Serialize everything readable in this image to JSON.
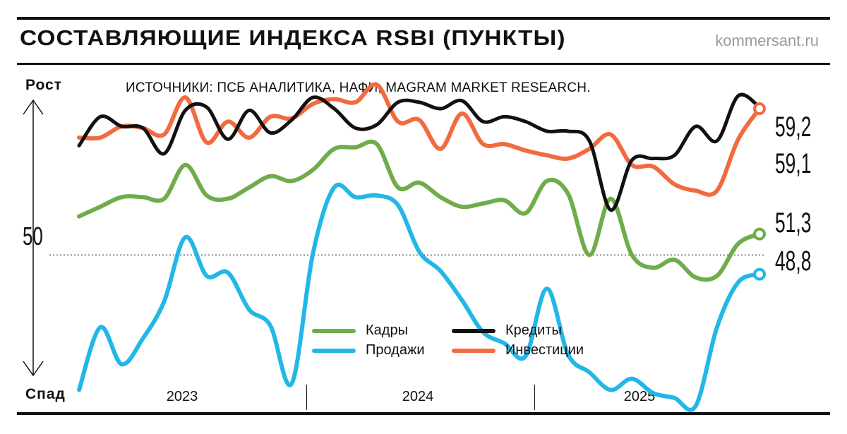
{
  "header": {
    "title": "СОСТАВЛЯЮЩИЕ ИНДЕКСА RSBI (ПУНКТЫ)",
    "site": "kommersant.ru"
  },
  "sources": "ИСТОЧНИКИ: ПСБ АНАЛИТИКА, НАФИ, MAGRAM MARKET RESEARCH.",
  "axis": {
    "up_label": "Рост",
    "down_label": "Спад"
  },
  "chart_data": {
    "type": "line",
    "title": "СОСТАВЛЯЮЩИЕ ИНДЕКСА RSBI (ПУНКТЫ)",
    "xlabel": "",
    "ylabel": "Рост / Спад",
    "years": [
      "2023",
      "2024",
      "2025"
    ],
    "ylim": [
      40,
      62
    ],
    "reference_line": {
      "value": 50,
      "label": "50",
      "style": "dotted"
    },
    "legend_position": "bottom-center",
    "series": [
      {
        "name": "Кредиты",
        "color": "#111111",
        "values": [
          56.8,
          58.6,
          58.0,
          57.9,
          56.3,
          59.0,
          59.2,
          57.2,
          59.0,
          57.6,
          58.4,
          59.8,
          59.1,
          57.9,
          58.1,
          59.5,
          59.5,
          59.1,
          59.6,
          58.3,
          58.6,
          58.3,
          57.7,
          57.7,
          57.1,
          52.8,
          55.9,
          56.0,
          56.2,
          58.0,
          57.1,
          59.9,
          59.2
        ],
        "end_label": "59,2",
        "end_marker": false
      },
      {
        "name": "Инвестиции",
        "color": "#f26a3f",
        "values": [
          57.3,
          57.3,
          58.0,
          57.9,
          57.5,
          59.8,
          57.0,
          58.3,
          57.3,
          58.6,
          58.5,
          59.4,
          59.7,
          59.5,
          60.6,
          58.3,
          58.4,
          56.6,
          58.8,
          56.9,
          56.9,
          56.5,
          56.2,
          56.0,
          56.6,
          57.5,
          55.6,
          55.5,
          54.4,
          54.0,
          54.0,
          57.2,
          59.1
        ],
        "end_label": "59,1",
        "end_marker": true
      },
      {
        "name": "Кадры",
        "color": "#6fac4b",
        "values": [
          52.4,
          53.0,
          53.6,
          53.6,
          53.5,
          55.6,
          53.7,
          53.5,
          54.2,
          54.9,
          54.6,
          55.3,
          56.6,
          56.7,
          56.9,
          54.2,
          54.5,
          53.6,
          53.0,
          53.2,
          53.4,
          52.6,
          54.6,
          53.8,
          50.0,
          53.5,
          50.0,
          49.2,
          49.7,
          48.6,
          48.7,
          50.7,
          51.3
        ],
        "end_label": "51,3",
        "end_marker": true
      },
      {
        "name": "Продажи",
        "color": "#22b7e6",
        "values": [
          41.6,
          45.5,
          43.2,
          44.8,
          47.1,
          51.1,
          48.7,
          48.9,
          46.6,
          45.6,
          42.0,
          50.1,
          54.2,
          53.6,
          53.7,
          53.1,
          50.2,
          49.0,
          47.2,
          45.2,
          44.5,
          43.7,
          47.9,
          43.8,
          42.7,
          41.6,
          42.3,
          41.4,
          41.1,
          40.6,
          45.5,
          48.3,
          48.8
        ],
        "end_label": "48,8",
        "end_marker": true
      }
    ]
  }
}
